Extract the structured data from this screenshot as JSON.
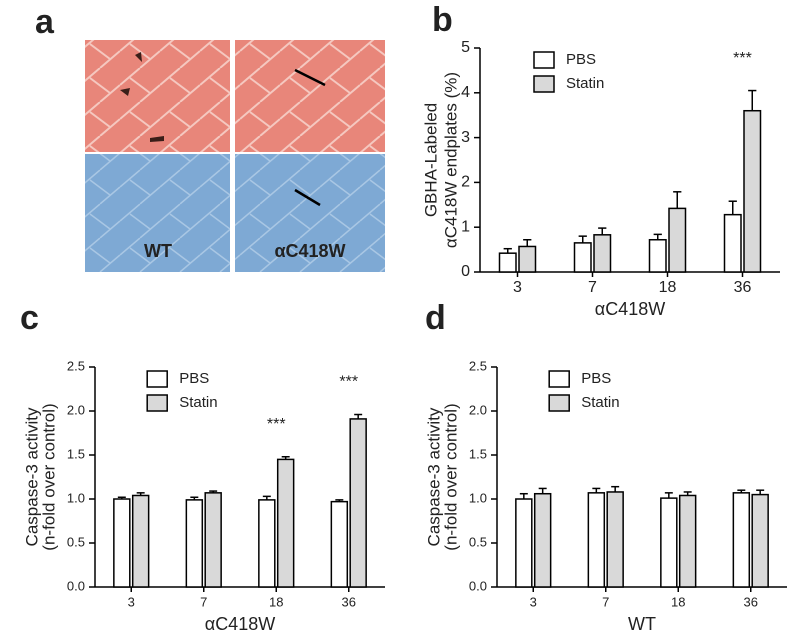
{
  "image_panel": {
    "label": "a",
    "captions": [
      "WT",
      "αC418W"
    ]
  },
  "chart_data": [
    {
      "type": "bar",
      "label": "b",
      "ylabel": [
        "GBHA-Labeled",
        "αC418W endplates (%)"
      ],
      "xlabel": "αC418W",
      "categories": [
        "3",
        "7",
        "18",
        "36"
      ],
      "series": [
        {
          "name": "PBS",
          "color": "#ffffff",
          "values": [
            0.42,
            0.65,
            0.72,
            1.28
          ],
          "errors": [
            0.1,
            0.15,
            0.12,
            0.3
          ]
        },
        {
          "name": "Statin",
          "color": "#d9d9d9",
          "values": [
            0.57,
            0.83,
            1.42,
            3.6
          ],
          "errors": [
            0.15,
            0.15,
            0.37,
            0.45
          ]
        }
      ],
      "ylim": [
        0,
        5
      ],
      "yticks": [
        0,
        1,
        2,
        3,
        4,
        5
      ],
      "legend": "upper left",
      "annotations": [
        {
          "text": "***",
          "category": "36"
        }
      ]
    },
    {
      "type": "bar",
      "label": "c",
      "ylabel": [
        "Caspase-3 activity",
        "(n-fold over control)"
      ],
      "xlabel": "αC418W",
      "categories": [
        "3",
        "7",
        "18",
        "36"
      ],
      "series": [
        {
          "name": "PBS",
          "color": "#ffffff",
          "values": [
            1.0,
            0.99,
            0.99,
            0.97
          ],
          "errors": [
            0.02,
            0.03,
            0.04,
            0.02
          ]
        },
        {
          "name": "Statin",
          "color": "#d9d9d9",
          "values": [
            1.04,
            1.07,
            1.45,
            1.91
          ],
          "errors": [
            0.03,
            0.02,
            0.03,
            0.05
          ]
        }
      ],
      "ylim": [
        0,
        2.5
      ],
      "yticks": [
        {
          "value": 0,
          "label": "0.0"
        },
        0.5,
        {
          "value": 1,
          "label": "1.0"
        },
        1.5,
        {
          "value": 2,
          "label": "2.0"
        },
        2.5
      ],
      "legend": "upper left",
      "annotations": [
        {
          "text": "***",
          "category": "18"
        },
        {
          "text": "***",
          "category": "36"
        }
      ]
    },
    {
      "type": "bar",
      "label": "d",
      "ylabel": [
        "Caspase-3 activity",
        "(n-fold over control)"
      ],
      "xlabel": "WT",
      "categories": [
        "3",
        "7",
        "18",
        "36"
      ],
      "series": [
        {
          "name": "PBS",
          "color": "#ffffff",
          "values": [
            1.0,
            1.07,
            1.01,
            1.07
          ],
          "errors": [
            0.06,
            0.05,
            0.06,
            0.03
          ]
        },
        {
          "name": "Statin",
          "color": "#d9d9d9",
          "values": [
            1.06,
            1.08,
            1.04,
            1.05
          ],
          "errors": [
            0.06,
            0.06,
            0.04,
            0.05
          ]
        }
      ],
      "ylim": [
        0,
        2.5
      ],
      "yticks": [
        {
          "value": 0,
          "label": "0.0"
        },
        0.5,
        {
          "value": 1,
          "label": "1.0"
        },
        1.5,
        {
          "value": 2,
          "label": "2.0"
        },
        2.5
      ],
      "legend": "upper left",
      "annotations": []
    }
  ]
}
